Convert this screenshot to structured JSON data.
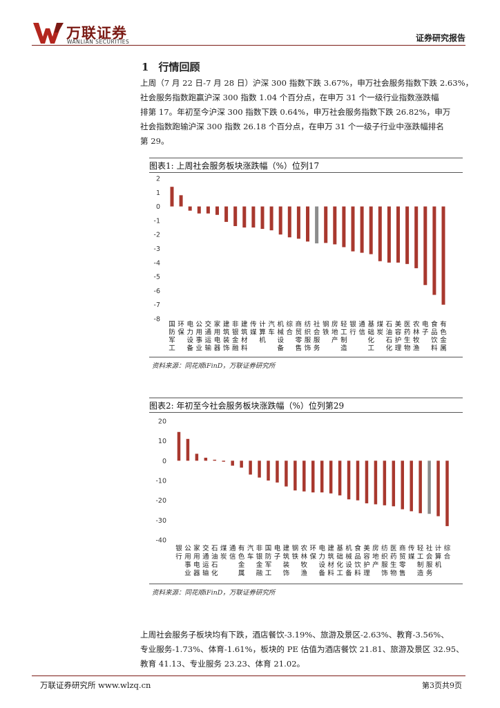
{
  "header": {
    "logo_cn": "万联证券",
    "logo_en": "WANLIAN SECURITIES",
    "report_type": "证券研究报告"
  },
  "section": {
    "number": "1",
    "title": "行情回顾"
  },
  "paragraph1": [
    "上周（7 月 22 日-7 月 28 日）沪深 300 指数下跌 3.67%，申万社会服务指数下跌 2.63%，",
    "社会服务指数跑赢沪深 300 指数 1.04 个百分点，在申万 31 个一级行业指数涨跌幅",
    "排第 17。年初至今沪深 300 指数下跌 0.64%，申万社会服务指数下跌 26.82%，申万",
    "社会指数跑输沪深 300 指数 26.18 个百分点，在申万 31 个一级子行业中涨跌幅排名",
    "第 29。"
  ],
  "charts": {
    "chart1_title": "图表1:  上周社会服务板块涨跌幅（%）位列17",
    "chart1_source": "资料来源：同花顺iFinD，万联证券研究所",
    "chart2_title": "图表2:  年初至今社会服务板块涨跌幅（%）位列第29",
    "chart2_source": "资料来源：同花顺iFinD，万联证券研究所"
  },
  "colors": {
    "bar": "#a8382e",
    "highlight": "#8c8c8c",
    "brand": "#7a1a14"
  },
  "chart_data": [
    {
      "type": "bar",
      "title": "上周社会服务板块涨跌幅（%）位列17",
      "ylim": [
        -8,
        2
      ],
      "yticks": [
        2,
        1,
        0,
        -1,
        -2,
        -3,
        -4,
        -5,
        -6,
        -7,
        -8
      ],
      "highlight_category": "社会服务",
      "categories": [
        "国防军工",
        "环保",
        "电力设备",
        "公用事业",
        "交通运输",
        "家用电器",
        "建筑装饰",
        "非银金融",
        "建筑材料",
        "传媒",
        "计算机",
        "汽车",
        "机械设备",
        "综合",
        "商贸零售",
        "纺织服饰",
        "社会服务",
        "钢铁",
        "房地产",
        "轻工制造",
        "银行",
        "通信",
        "基础化工",
        "煤炭",
        "石油石化",
        "美容护理",
        "医药生物",
        "农林牧渔",
        "电子",
        "食品饮料",
        "有色金属"
      ],
      "values": [
        1.4,
        0.8,
        -0.3,
        -0.5,
        -0.5,
        -0.6,
        -1.1,
        -1.4,
        -1.5,
        -1.5,
        -1.6,
        -1.7,
        -2.0,
        -2.2,
        -2.3,
        -2.5,
        -2.63,
        -2.6,
        -2.7,
        -2.9,
        -3.2,
        -3.3,
        -3.4,
        -3.9,
        -4.0,
        -4.0,
        -4.1,
        -4.4,
        -5.6,
        -6.3,
        -7.0
      ]
    },
    {
      "type": "bar",
      "title": "年初至今社会服务板块涨跌幅（%）位列第29",
      "ylim": [
        -40,
        20
      ],
      "yticks": [
        20,
        10,
        0,
        -10,
        -20,
        -30,
        -40
      ],
      "highlight_category": "社会服务",
      "categories": [
        "银行",
        "公用事业",
        "家用电器",
        "交通运输",
        "石油石化",
        "煤炭",
        "通信",
        "有色金属",
        "汽车",
        "非银金融",
        "国防军工",
        "电子",
        "建筑装饰",
        "钢铁",
        "农林牧渔",
        "环保",
        "电力设备",
        "建筑材料",
        "基础化工",
        "机械设备",
        "食品饮料",
        "美容护理",
        "房地产",
        "纺织服饰",
        "医药生物",
        "商贸零售",
        "传媒",
        "轻工制造",
        "社会服务",
        "计算机",
        "综合"
      ],
      "values": [
        14.5,
        11.0,
        3.5,
        1.5,
        0.5,
        -0.5,
        -2.5,
        -3.5,
        -7.0,
        -8.5,
        -10.0,
        -11.0,
        -13.0,
        -15.0,
        -15.5,
        -16.0,
        -16.0,
        -16.5,
        -17.5,
        -19.5,
        -20.0,
        -21.5,
        -22.0,
        -22.5,
        -23.0,
        -24.5,
        -25.5,
        -26.5,
        -26.82,
        -28.0,
        -33.0
      ]
    }
  ],
  "paragraph2": [
    "上周社会服务子板块均有下跌，酒店餐饮-3.19%、旅游及景区-2.63%、教育-3.56%、",
    "专业服务-1.73%、体育-1.61%，板块的 PE 估值为酒店餐饮 21.81、旅游及景区 32.95、",
    "教育 41.13、专业服务 23.23、体育 21.02。"
  ],
  "footer": {
    "left": "万联证券研究所  www.wlzq.cn",
    "right": "第3页共9页"
  }
}
